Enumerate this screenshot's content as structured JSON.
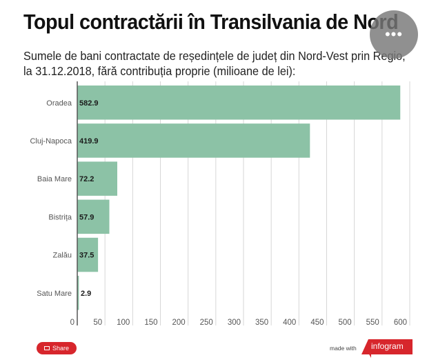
{
  "header": {
    "title": "Topul contractării în Transilvania de Nord",
    "subtitle": "Sumele de bani contractate de reședințele de județ din Nord-Vest prin Regio, la 31.12.2018, fără contribuția proprie (milioane de lei):",
    "menu_icon": "more-horizontal-icon",
    "menu_dots": "•••"
  },
  "chart_data": {
    "type": "bar",
    "orientation": "horizontal",
    "title": "Topul contractării în Transilvania de Nord",
    "subtitle": "Sumele de bani contractate de reședințele de județ din Nord-Vest prin Regio, la 31.12.2018, fără contribuția proprie (milioane de lei):",
    "categories": [
      "Oradea",
      "Cluj-Napoca",
      "Baia Mare",
      "Bistrița",
      "Zalău",
      "Satu Mare"
    ],
    "values": [
      582.9,
      419.9,
      72.2,
      57.9,
      37.5,
      2.9
    ],
    "data_labels": [
      "582.9",
      "419.9",
      "72.2",
      "57.9",
      "37.5",
      "2.9"
    ],
    "xlabel": "",
    "ylabel": "",
    "xlim": [
      0,
      600
    ],
    "xticks": [
      0,
      50,
      100,
      150,
      200,
      250,
      300,
      350,
      400,
      450,
      500,
      550,
      600
    ],
    "grid": true,
    "legend": "none",
    "bar_color": "#8cc2a6"
  },
  "footer": {
    "share_label": "Share",
    "share_icon": "share-icon",
    "made_with": "made with",
    "brand": "infogram",
    "brand_color": "#d7262c"
  }
}
